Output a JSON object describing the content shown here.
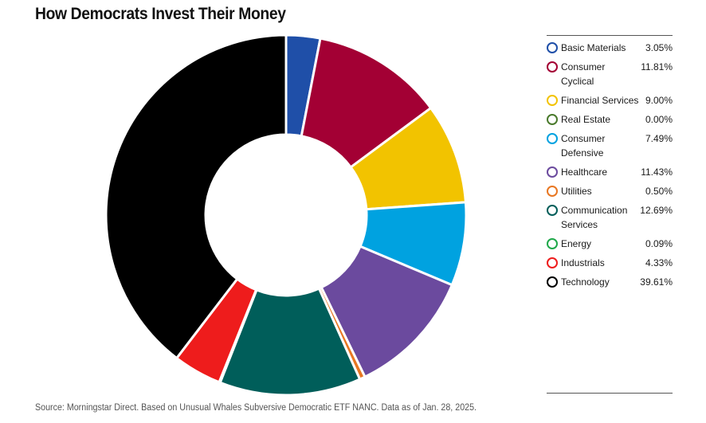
{
  "title": "How Democrats Invest Their Money",
  "source": "Source: Morningstar Direct. Based on Unusual Whales Subversive Democratic ETF NANC. Data as of Jan. 28, 2025.",
  "chart_data": {
    "type": "pie",
    "donut": true,
    "title": "How Democrats Invest Their Money",
    "legend_position": "right",
    "categories": [
      "Basic Materials",
      "Consumer Cyclical",
      "Financial Services",
      "Real Estate",
      "Consumer Defensive",
      "Healthcare",
      "Utilities",
      "Communication Services",
      "Energy",
      "Industrials",
      "Technology"
    ],
    "values": [
      3.05,
      11.81,
      9.0,
      0.0,
      7.49,
      11.43,
      0.5,
      12.69,
      0.09,
      4.33,
      39.61
    ],
    "value_labels": [
      "3.05%",
      "11.81%",
      "9.00%",
      "0.00%",
      "7.49%",
      "11.43%",
      "0.50%",
      "12.69%",
      "0.09%",
      "4.33%",
      "39.61%"
    ],
    "colors": [
      "#1f4fa8",
      "#a30034",
      "#f2c300",
      "#4a7a2c",
      "#00a2e0",
      "#6b4a9e",
      "#e87722",
      "#005e5a",
      "#1fa84a",
      "#ee1c1c",
      "#000000"
    ]
  }
}
